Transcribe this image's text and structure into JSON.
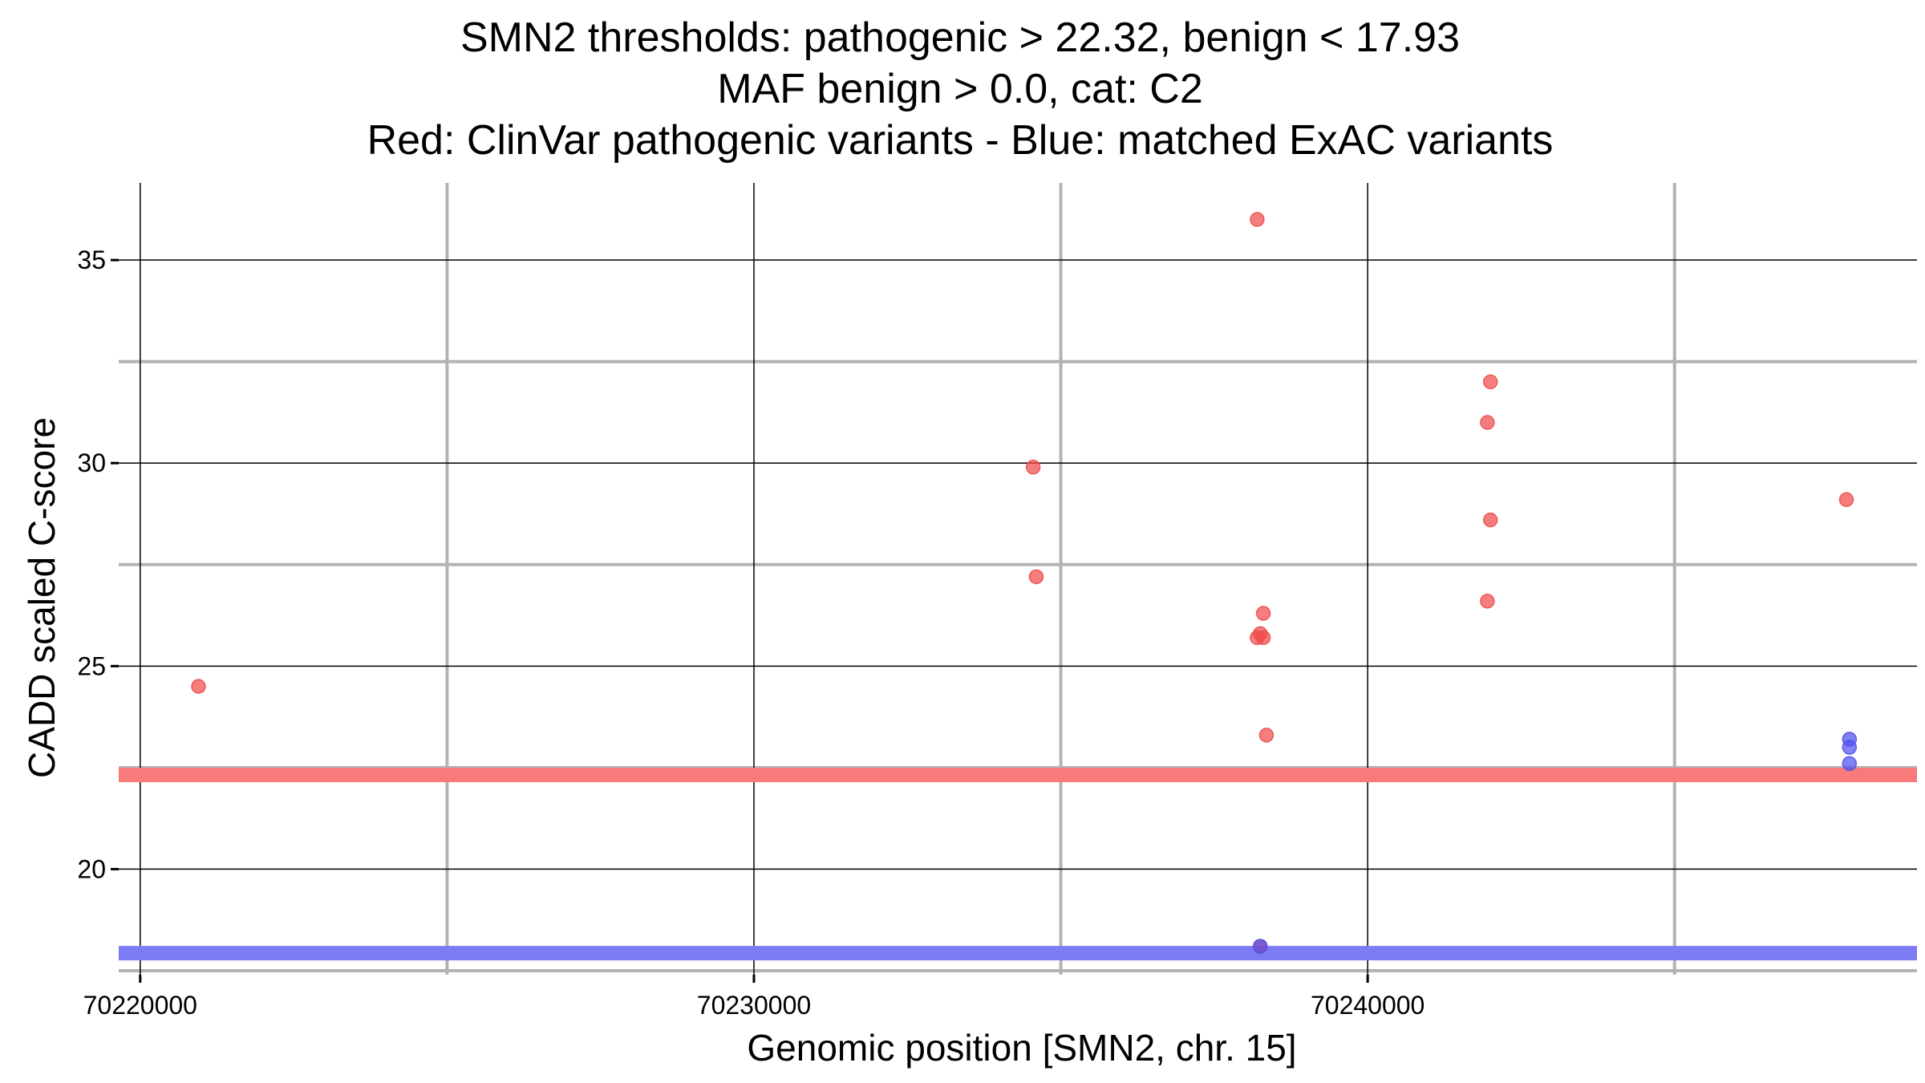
{
  "chart_data": {
    "type": "scatter",
    "title_lines": [
      "SMN2 thresholds: pathogenic > 22.32, benign < 17.93",
      "MAF benign > 0.0, cat: C2",
      "Red: ClinVar pathogenic variants - Blue: matched ExAC variants"
    ],
    "xlabel": "Genomic position [SMN2, chr. 15]",
    "ylabel": "CADD scaled C-score",
    "xlim": [
      70219650,
      70248950
    ],
    "ylim": [
      17.4,
      36.9
    ],
    "x_major_ticks": [
      70220000,
      70230000,
      70240000
    ],
    "x_tick_labels": [
      "70220000",
      "70230000",
      "70240000"
    ],
    "x_minor_grid": [
      70225000,
      70235000,
      70245000
    ],
    "y_major_ticks": [
      20,
      25,
      30,
      35
    ],
    "y_tick_labels": [
      "20",
      "25",
      "30",
      "35"
    ],
    "y_minor_grid": [
      17.5,
      22.5,
      27.5,
      32.5
    ],
    "thresholds": [
      {
        "name": "pathogenic",
        "value": 22.32,
        "color": "#f87a7a"
      },
      {
        "name": "benign",
        "value": 17.93,
        "color": "#7b7bf4"
      }
    ],
    "series": [
      {
        "name": "ClinVar pathogenic variants",
        "color": "#f04c4c",
        "points": [
          {
            "x": 70220950,
            "y": 24.5
          },
          {
            "x": 70234550,
            "y": 29.9
          },
          {
            "x": 70234600,
            "y": 27.2
          },
          {
            "x": 70238200,
            "y": 36.0
          },
          {
            "x": 70238300,
            "y": 26.3
          },
          {
            "x": 70238200,
            "y": 25.7
          },
          {
            "x": 70238250,
            "y": 25.8
          },
          {
            "x": 70238300,
            "y": 25.7
          },
          {
            "x": 70238350,
            "y": 23.3
          },
          {
            "x": 70238250,
            "y": 18.1
          },
          {
            "x": 70242000,
            "y": 32.0
          },
          {
            "x": 70241950,
            "y": 31.0
          },
          {
            "x": 70242000,
            "y": 28.6
          },
          {
            "x": 70241950,
            "y": 26.6
          },
          {
            "x": 70247800,
            "y": 29.1
          }
        ]
      },
      {
        "name": "matched ExAC variants",
        "color": "#5050f0",
        "points": [
          {
            "x": 70247850,
            "y": 23.2
          },
          {
            "x": 70247850,
            "y": 23.0
          },
          {
            "x": 70247850,
            "y": 22.6
          },
          {
            "x": 70238250,
            "y": 18.1
          }
        ]
      }
    ]
  }
}
